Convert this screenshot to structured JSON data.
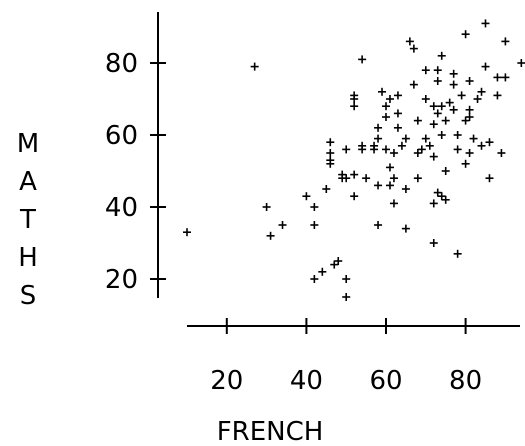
{
  "chart_data": {
    "type": "scatter",
    "title": "",
    "xlabel": "FRENCH",
    "ylabel_letters": [
      "M",
      "A",
      "T",
      "H",
      "S"
    ],
    "x_ticks": [
      20,
      40,
      60,
      80
    ],
    "y_ticks": [
      20,
      40,
      60,
      80
    ],
    "xlim": [
      10,
      94
    ],
    "ylim": [
      15,
      90
    ],
    "grid": false,
    "marker": "plus",
    "points": [
      [
        10,
        33
      ],
      [
        27,
        79
      ],
      [
        30,
        40
      ],
      [
        31,
        32
      ],
      [
        34,
        35
      ],
      [
        40,
        43
      ],
      [
        42,
        20
      ],
      [
        42,
        35
      ],
      [
        42,
        40
      ],
      [
        44,
        22
      ],
      [
        45,
        45
      ],
      [
        46,
        52
      ],
      [
        46,
        53
      ],
      [
        46,
        55
      ],
      [
        46,
        58
      ],
      [
        47,
        24
      ],
      [
        48,
        25
      ],
      [
        49,
        48
      ],
      [
        49,
        49
      ],
      [
        50,
        15
      ],
      [
        50,
        20
      ],
      [
        50,
        48
      ],
      [
        50,
        56
      ],
      [
        52,
        43
      ],
      [
        52,
        49
      ],
      [
        52,
        68
      ],
      [
        52,
        70
      ],
      [
        52,
        71
      ],
      [
        54,
        56
      ],
      [
        54,
        57
      ],
      [
        54,
        81
      ],
      [
        55,
        48
      ],
      [
        57,
        56
      ],
      [
        57,
        57
      ],
      [
        58,
        35
      ],
      [
        58,
        46
      ],
      [
        58,
        59
      ],
      [
        58,
        62
      ],
      [
        59,
        72
      ],
      [
        60,
        56
      ],
      [
        60,
        65
      ],
      [
        60,
        68
      ],
      [
        61,
        46
      ],
      [
        61,
        51
      ],
      [
        61,
        70
      ],
      [
        62,
        41
      ],
      [
        62,
        48
      ],
      [
        62,
        55
      ],
      [
        63,
        62
      ],
      [
        63,
        66
      ],
      [
        63,
        71
      ],
      [
        64,
        57
      ],
      [
        65,
        34
      ],
      [
        65,
        45
      ],
      [
        65,
        59
      ],
      [
        66,
        86
      ],
      [
        67,
        74
      ],
      [
        67,
        84
      ],
      [
        68,
        48
      ],
      [
        68,
        55
      ],
      [
        68,
        64
      ],
      [
        69,
        56
      ],
      [
        70,
        59
      ],
      [
        70,
        70
      ],
      [
        70,
        78
      ],
      [
        71,
        57
      ],
      [
        72,
        30
      ],
      [
        72,
        41
      ],
      [
        72,
        54
      ],
      [
        72,
        63
      ],
      [
        72,
        68
      ],
      [
        73,
        44
      ],
      [
        73,
        66
      ],
      [
        73,
        75
      ],
      [
        73,
        78
      ],
      [
        74,
        43
      ],
      [
        74,
        60
      ],
      [
        74,
        68
      ],
      [
        74,
        82
      ],
      [
        75,
        42
      ],
      [
        75,
        50
      ],
      [
        75,
        64
      ],
      [
        76,
        69
      ],
      [
        77,
        67
      ],
      [
        77,
        74
      ],
      [
        77,
        77
      ],
      [
        78,
        27
      ],
      [
        78,
        56
      ],
      [
        78,
        60
      ],
      [
        79,
        71
      ],
      [
        80,
        52
      ],
      [
        80,
        64
      ],
      [
        80,
        88
      ],
      [
        81,
        55
      ],
      [
        81,
        65
      ],
      [
        81,
        67
      ],
      [
        81,
        75
      ],
      [
        82,
        59
      ],
      [
        83,
        70
      ],
      [
        84,
        57
      ],
      [
        84,
        72
      ],
      [
        85,
        79
      ],
      [
        85,
        91
      ],
      [
        86,
        48
      ],
      [
        86,
        58
      ],
      [
        88,
        71
      ],
      [
        88,
        76
      ],
      [
        89,
        55
      ],
      [
        90,
        86
      ],
      [
        90,
        76
      ],
      [
        94,
        80
      ]
    ]
  }
}
